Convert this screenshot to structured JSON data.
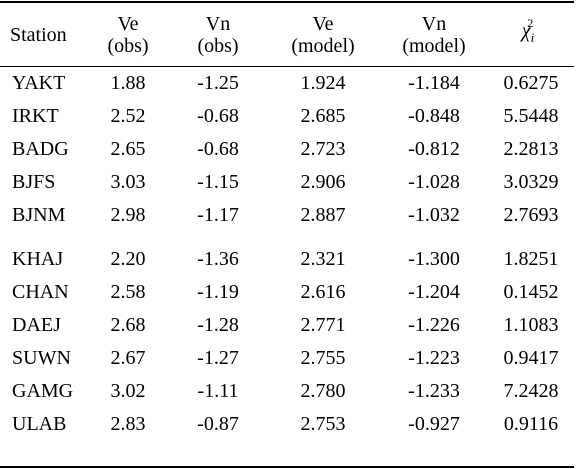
{
  "columns": {
    "station": "Station",
    "ve_obs": [
      "Ve",
      "(obs)"
    ],
    "vn_obs": [
      "Vn",
      "(obs)"
    ],
    "ve_model": [
      "Ve",
      "(model)"
    ],
    "vn_model": [
      "Vn",
      "(model)"
    ],
    "chi": {
      "symbol": "χ",
      "subscript": "i",
      "superscript": "2"
    }
  },
  "rows": [
    {
      "station": "YAKT",
      "ve_obs": "1.88",
      "vn_obs": "-1.25",
      "ve_model": "1.924",
      "vn_model": "-1.184",
      "chi2": "0.6275"
    },
    {
      "station": "IRKT",
      "ve_obs": "2.52",
      "vn_obs": "-0.68",
      "ve_model": "2.685",
      "vn_model": "-0.848",
      "chi2": "5.5448"
    },
    {
      "station": "BADG",
      "ve_obs": "2.65",
      "vn_obs": "-0.68",
      "ve_model": "2.723",
      "vn_model": "-0.812",
      "chi2": "2.2813"
    },
    {
      "station": "BJFS",
      "ve_obs": "3.03",
      "vn_obs": "-1.15",
      "ve_model": "2.906",
      "vn_model": "-1.028",
      "chi2": "3.0329"
    },
    {
      "station": "BJNM",
      "ve_obs": "2.98",
      "vn_obs": "-1.17",
      "ve_model": "2.887",
      "vn_model": "-1.032",
      "chi2": "2.7693"
    },
    {
      "station": "KHAJ",
      "ve_obs": "2.20",
      "vn_obs": "-1.36",
      "ve_model": "2.321",
      "vn_model": "-1.300",
      "chi2": "1.8251"
    },
    {
      "station": "CHAN",
      "ve_obs": "2.58",
      "vn_obs": "-1.19",
      "ve_model": "2.616",
      "vn_model": "-1.204",
      "chi2": "0.1452"
    },
    {
      "station": "DAEJ",
      "ve_obs": "2.68",
      "vn_obs": "-1.28",
      "ve_model": "2.771",
      "vn_model": "-1.226",
      "chi2": "1.1083"
    },
    {
      "station": "SUWN",
      "ve_obs": "2.67",
      "vn_obs": "-1.27",
      "ve_model": "2.755",
      "vn_model": "-1.223",
      "chi2": "0.9417"
    },
    {
      "station": "GAMG",
      "ve_obs": "3.02",
      "vn_obs": "-1.11",
      "ve_model": "2.780",
      "vn_model": "-1.233",
      "chi2": "7.2428"
    },
    {
      "station": "ULAB",
      "ve_obs": "2.83",
      "vn_obs": "-0.87",
      "ve_model": "2.753",
      "vn_model": "-0.927",
      "chi2": "0.9116"
    }
  ]
}
